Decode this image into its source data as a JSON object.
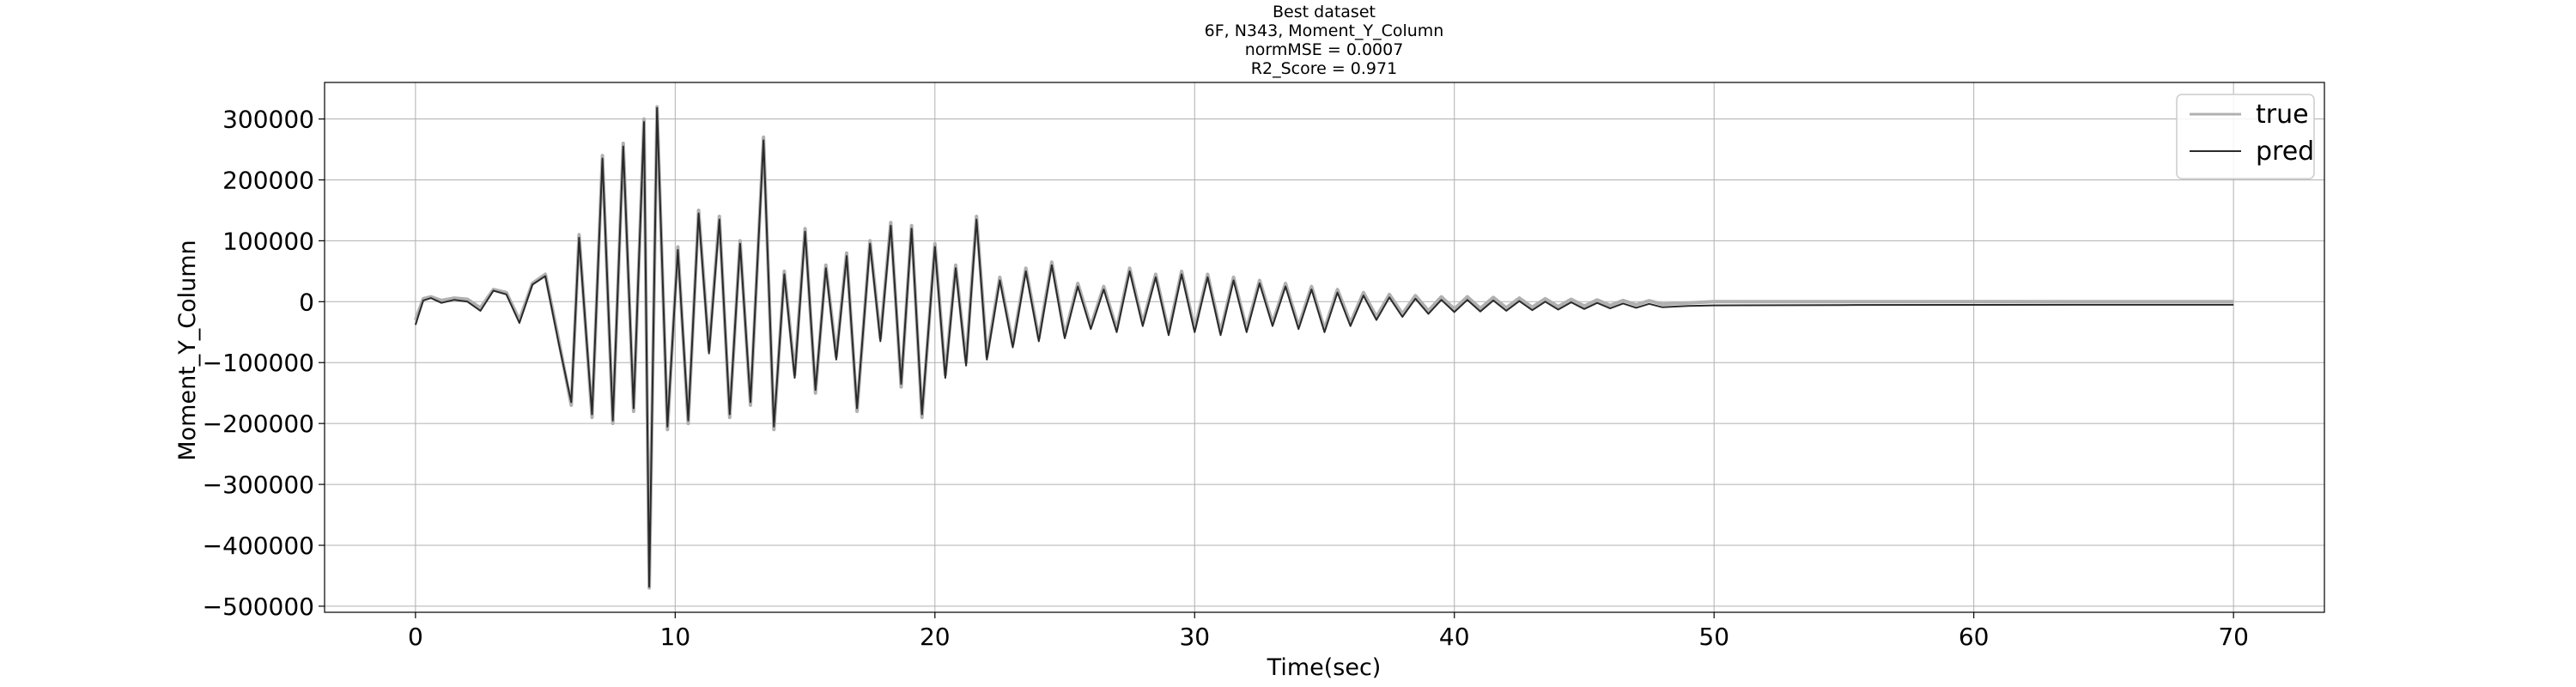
{
  "chart_data": {
    "type": "line",
    "title_lines": [
      "Best dataset",
      "6F, N343, Moment_Y_Column",
      "normMSE = 0.0007",
      "R2_Score = 0.971"
    ],
    "xlabel": "Time(sec)",
    "ylabel": "Moment_Y_Column",
    "xlim": [
      -3.5,
      73.5
    ],
    "ylim": [
      -510000,
      360000
    ],
    "x_ticks": [
      0,
      10,
      20,
      30,
      40,
      50,
      60,
      70
    ],
    "x_tick_labels": [
      "0",
      "10",
      "20",
      "30",
      "40",
      "50",
      "60",
      "70"
    ],
    "y_ticks": [
      -500000,
      -400000,
      -300000,
      -200000,
      -100000,
      0,
      100000,
      200000,
      300000
    ],
    "y_tick_labels": [
      "−500000",
      "−400000",
      "−300000",
      "−200000",
      "−100000",
      "0",
      "100000",
      "200000",
      "300000"
    ],
    "grid": true,
    "legend_position": "top-right",
    "series": [
      {
        "name": "true",
        "color": "#b0b0b0",
        "points": [
          [
            0,
            -30000
          ],
          [
            0.3,
            5000
          ],
          [
            0.6,
            8000
          ],
          [
            1,
            2000
          ],
          [
            1.5,
            6000
          ],
          [
            2,
            4000
          ],
          [
            2.5,
            -10000
          ],
          [
            3,
            20000
          ],
          [
            3.5,
            15000
          ],
          [
            4,
            -30000
          ],
          [
            4.5,
            30000
          ],
          [
            5,
            45000
          ],
          [
            5.5,
            -60000
          ],
          [
            6,
            -170000
          ],
          [
            6.3,
            110000
          ],
          [
            6.8,
            -190000
          ],
          [
            7.2,
            240000
          ],
          [
            7.6,
            -200000
          ],
          [
            8,
            260000
          ],
          [
            8.4,
            -180000
          ],
          [
            8.8,
            300000
          ],
          [
            9.0,
            -470000
          ],
          [
            9.3,
            320000
          ],
          [
            9.7,
            -210000
          ],
          [
            10.1,
            90000
          ],
          [
            10.5,
            -200000
          ],
          [
            10.9,
            150000
          ],
          [
            11.3,
            -80000
          ],
          [
            11.7,
            140000
          ],
          [
            12.1,
            -190000
          ],
          [
            12.5,
            100000
          ],
          [
            12.9,
            -170000
          ],
          [
            13.4,
            270000
          ],
          [
            13.8,
            -210000
          ],
          [
            14.2,
            50000
          ],
          [
            14.6,
            -120000
          ],
          [
            15.0,
            120000
          ],
          [
            15.4,
            -150000
          ],
          [
            15.8,
            60000
          ],
          [
            16.2,
            -90000
          ],
          [
            16.6,
            80000
          ],
          [
            17.0,
            -180000
          ],
          [
            17.5,
            100000
          ],
          [
            17.9,
            -60000
          ],
          [
            18.3,
            130000
          ],
          [
            18.7,
            -140000
          ],
          [
            19.1,
            125000
          ],
          [
            19.5,
            -190000
          ],
          [
            20,
            95000
          ],
          [
            20.4,
            -120000
          ],
          [
            20.8,
            60000
          ],
          [
            21.2,
            -100000
          ],
          [
            21.6,
            140000
          ],
          [
            22,
            -90000
          ],
          [
            22.5,
            40000
          ],
          [
            23,
            -70000
          ],
          [
            23.5,
            55000
          ],
          [
            24,
            -60000
          ],
          [
            24.5,
            65000
          ],
          [
            25,
            -55000
          ],
          [
            25.5,
            30000
          ],
          [
            26,
            -40000
          ],
          [
            26.5,
            25000
          ],
          [
            27,
            -45000
          ],
          [
            27.5,
            55000
          ],
          [
            28,
            -35000
          ],
          [
            28.5,
            45000
          ],
          [
            29,
            -50000
          ],
          [
            29.5,
            50000
          ],
          [
            30,
            -45000
          ],
          [
            30.5,
            45000
          ],
          [
            31,
            -50000
          ],
          [
            31.5,
            40000
          ],
          [
            32,
            -45000
          ],
          [
            32.5,
            35000
          ],
          [
            33,
            -35000
          ],
          [
            33.5,
            30000
          ],
          [
            34,
            -40000
          ],
          [
            34.5,
            25000
          ],
          [
            35,
            -45000
          ],
          [
            35.5,
            20000
          ],
          [
            36,
            -35000
          ],
          [
            36.5,
            15000
          ],
          [
            37,
            -25000
          ],
          [
            37.5,
            12000
          ],
          [
            38,
            -20000
          ],
          [
            38.5,
            10000
          ],
          [
            39,
            -15000
          ],
          [
            39.5,
            8000
          ],
          [
            40,
            -12000
          ],
          [
            40.5,
            8000
          ],
          [
            41,
            -11000
          ],
          [
            41.5,
            7000
          ],
          [
            42,
            -10000
          ],
          [
            42.5,
            6000
          ],
          [
            43,
            -9000
          ],
          [
            43.5,
            5000
          ],
          [
            44,
            -8000
          ],
          [
            44.5,
            4000
          ],
          [
            45,
            -7000
          ],
          [
            45.5,
            3000
          ],
          [
            46,
            -6000
          ],
          [
            46.5,
            2000
          ],
          [
            47,
            -5000
          ],
          [
            47.5,
            1500
          ],
          [
            48,
            -4000
          ],
          [
            49,
            -2000
          ],
          [
            50,
            0
          ],
          [
            55,
            0
          ],
          [
            60,
            0
          ],
          [
            65,
            0
          ],
          [
            70,
            0
          ]
        ]
      },
      {
        "name": "pred",
        "color": "#2a2a2a",
        "points": [
          [
            0,
            -38000
          ],
          [
            0.3,
            2000
          ],
          [
            0.6,
            6000
          ],
          [
            1,
            -2000
          ],
          [
            1.5,
            3000
          ],
          [
            2,
            0
          ],
          [
            2.5,
            -15000
          ],
          [
            3,
            18000
          ],
          [
            3.5,
            12000
          ],
          [
            4,
            -35000
          ],
          [
            4.5,
            28000
          ],
          [
            5,
            42000
          ],
          [
            5.5,
            -65000
          ],
          [
            6,
            -165000
          ],
          [
            6.3,
            105000
          ],
          [
            6.8,
            -185000
          ],
          [
            7.2,
            235000
          ],
          [
            7.6,
            -195000
          ],
          [
            8,
            255000
          ],
          [
            8.4,
            -175000
          ],
          [
            8.8,
            295000
          ],
          [
            9.0,
            -468000
          ],
          [
            9.3,
            318000
          ],
          [
            9.7,
            -205000
          ],
          [
            10.1,
            85000
          ],
          [
            10.5,
            -195000
          ],
          [
            10.9,
            145000
          ],
          [
            11.3,
            -85000
          ],
          [
            11.7,
            135000
          ],
          [
            12.1,
            -185000
          ],
          [
            12.5,
            95000
          ],
          [
            12.9,
            -165000
          ],
          [
            13.4,
            265000
          ],
          [
            13.8,
            -205000
          ],
          [
            14.2,
            45000
          ],
          [
            14.6,
            -125000
          ],
          [
            15.0,
            115000
          ],
          [
            15.4,
            -145000
          ],
          [
            15.8,
            55000
          ],
          [
            16.2,
            -95000
          ],
          [
            16.6,
            75000
          ],
          [
            17.0,
            -175000
          ],
          [
            17.5,
            95000
          ],
          [
            17.9,
            -65000
          ],
          [
            18.3,
            125000
          ],
          [
            18.7,
            -135000
          ],
          [
            19.1,
            120000
          ],
          [
            19.5,
            -185000
          ],
          [
            20,
            90000
          ],
          [
            20.4,
            -125000
          ],
          [
            20.8,
            55000
          ],
          [
            21.2,
            -105000
          ],
          [
            21.6,
            135000
          ],
          [
            22,
            -95000
          ],
          [
            22.5,
            35000
          ],
          [
            23,
            -75000
          ],
          [
            23.5,
            50000
          ],
          [
            24,
            -65000
          ],
          [
            24.5,
            60000
          ],
          [
            25,
            -60000
          ],
          [
            25.5,
            25000
          ],
          [
            26,
            -45000
          ],
          [
            26.5,
            20000
          ],
          [
            27,
            -50000
          ],
          [
            27.5,
            50000
          ],
          [
            28,
            -40000
          ],
          [
            28.5,
            40000
          ],
          [
            29,
            -55000
          ],
          [
            29.5,
            45000
          ],
          [
            30,
            -50000
          ],
          [
            30.5,
            40000
          ],
          [
            31,
            -55000
          ],
          [
            31.5,
            35000
          ],
          [
            32,
            -50000
          ],
          [
            32.5,
            30000
          ],
          [
            33,
            -40000
          ],
          [
            33.5,
            25000
          ],
          [
            34,
            -45000
          ],
          [
            34.5,
            20000
          ],
          [
            35,
            -50000
          ],
          [
            35.5,
            15000
          ],
          [
            36,
            -40000
          ],
          [
            36.5,
            10000
          ],
          [
            37,
            -30000
          ],
          [
            37.5,
            7000
          ],
          [
            38,
            -25000
          ],
          [
            38.5,
            5000
          ],
          [
            39,
            -20000
          ],
          [
            39.5,
            3000
          ],
          [
            40,
            -17000
          ],
          [
            40.5,
            3000
          ],
          [
            41,
            -16000
          ],
          [
            41.5,
            2000
          ],
          [
            42,
            -15000
          ],
          [
            42.5,
            1000
          ],
          [
            43,
            -14000
          ],
          [
            43.5,
            0
          ],
          [
            44,
            -13000
          ],
          [
            44.5,
            -1000
          ],
          [
            45,
            -12000
          ],
          [
            45.5,
            -2000
          ],
          [
            46,
            -11000
          ],
          [
            46.5,
            -3000
          ],
          [
            47,
            -10000
          ],
          [
            47.5,
            -3500
          ],
          [
            48,
            -9000
          ],
          [
            49,
            -7000
          ],
          [
            50,
            -6000
          ],
          [
            55,
            -5500
          ],
          [
            60,
            -5200
          ],
          [
            65,
            -5000
          ],
          [
            70,
            -5000
          ]
        ]
      }
    ]
  }
}
